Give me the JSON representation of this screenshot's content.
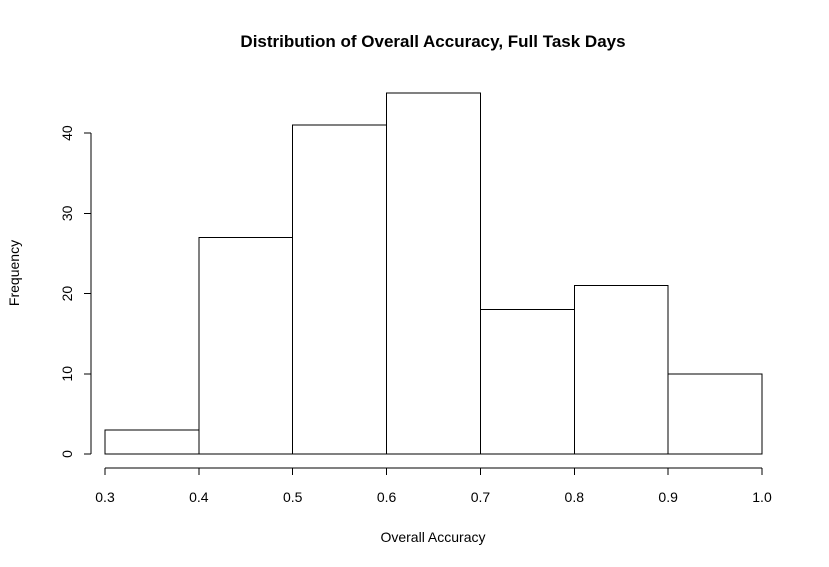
{
  "chart_data": {
    "type": "bar",
    "title": "Distribution of Overall Accuracy, Full Task Days",
    "xlabel": "Overall Accuracy",
    "ylabel": "Frequency",
    "bins": [
      {
        "start": 0.3,
        "end": 0.4,
        "count": 3
      },
      {
        "start": 0.4,
        "end": 0.5,
        "count": 27
      },
      {
        "start": 0.5,
        "end": 0.6,
        "count": 41
      },
      {
        "start": 0.6,
        "end": 0.7,
        "count": 45
      },
      {
        "start": 0.7,
        "end": 0.8,
        "count": 18
      },
      {
        "start": 0.8,
        "end": 0.9,
        "count": 21
      },
      {
        "start": 0.9,
        "end": 1.0,
        "count": 10
      }
    ],
    "xlim": [
      0.3,
      1.0
    ],
    "ylim": [
      0,
      45
    ],
    "x_ticks": [
      "0.3",
      "0.4",
      "0.5",
      "0.6",
      "0.7",
      "0.8",
      "0.9",
      "1.0"
    ],
    "y_ticks": [
      "0",
      "10",
      "20",
      "30",
      "40"
    ],
    "grid": false,
    "legend": "none",
    "colors": {
      "bar_fill": "#ffffff",
      "bar_stroke": "#000000",
      "axis": "#000000",
      "text": "#000000"
    }
  }
}
